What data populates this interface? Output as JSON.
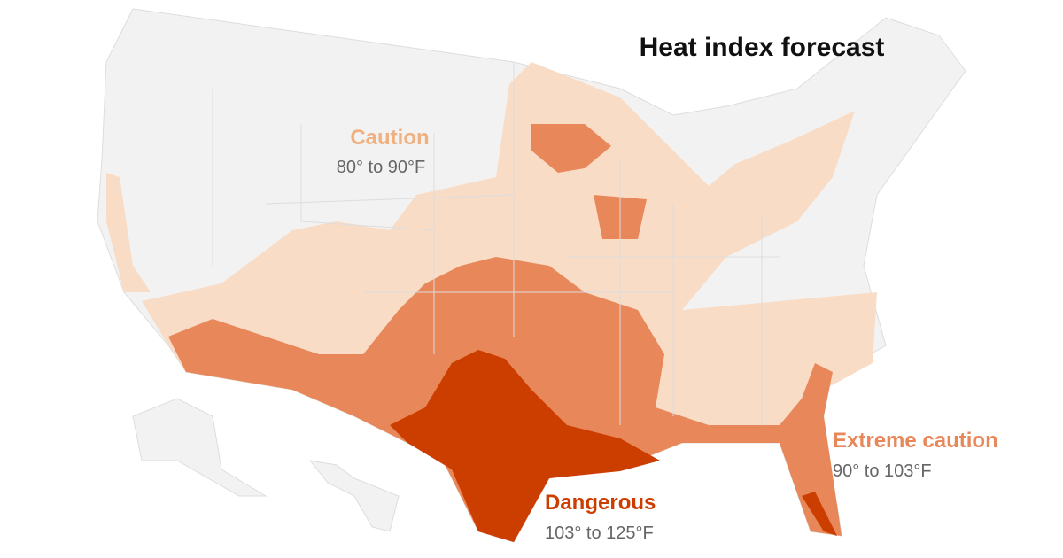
{
  "title": "Heat index forecast",
  "levels": [
    {
      "name": "Caution",
      "range": "80° to 90°F",
      "color": "#f9dcc6"
    },
    {
      "name": "Extreme caution",
      "range": "90° to 103°F",
      "color": "#e8885a"
    },
    {
      "name": "Dangerous",
      "range": "103° to 125°F",
      "color": "#cc3d00"
    }
  ]
}
